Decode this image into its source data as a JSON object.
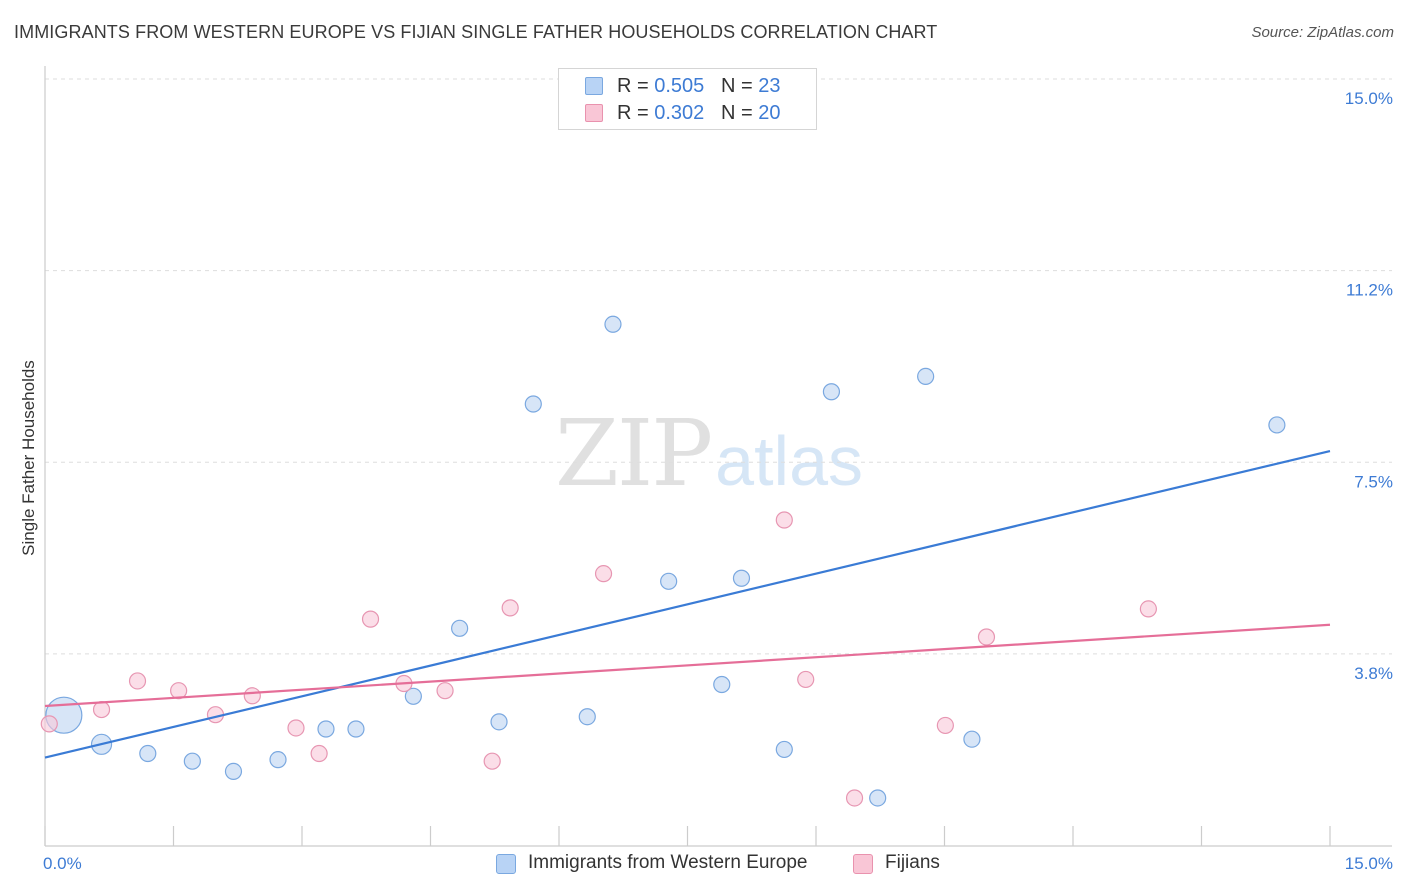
{
  "title": "IMMIGRANTS FROM WESTERN EUROPE VS FIJIAN SINGLE FATHER HOUSEHOLDS CORRELATION CHART",
  "source": "Source: ZipAtlas.com",
  "watermark": {
    "zip": "ZIP",
    "atlas": "atlas"
  },
  "legend_top": {
    "rows": [
      {
        "r_label": "R =",
        "r_value": "0.505",
        "n_label": "N =",
        "n_value": "23",
        "color": "#b8d3f5",
        "border": "#7aa8e0"
      },
      {
        "r_label": "R =",
        "r_value": "0.302",
        "n_label": "N =",
        "n_value": "20",
        "color": "#f9c6d6",
        "border": "#e992ae"
      }
    ]
  },
  "legend_bottom": [
    {
      "label": "Immigrants from Western Europe",
      "color": "#b8d3f5",
      "border": "#7aa8e0"
    },
    {
      "label": "Fijians",
      "color": "#f9c6d6",
      "border": "#e992ae"
    }
  ],
  "colors": {
    "blue_fill": "#bcd4f2",
    "blue_stroke": "#7aa8e0",
    "blue_line": "#3a7bd5",
    "pink_fill": "#f8c8d8",
    "pink_stroke": "#e796b2",
    "pink_line": "#e56e98",
    "tick_label": "#3d7bd4",
    "grid": "#dddddd",
    "axis": "#cccccc"
  },
  "chart_data": {
    "type": "scatter",
    "title": "IMMIGRANTS FROM WESTERN EUROPE VS FIJIAN SINGLE FATHER HOUSEHOLDS CORRELATION CHART",
    "xlabel": "",
    "ylabel": "Single Father Households",
    "xlim": [
      0,
      15
    ],
    "ylim": [
      0,
      15.4
    ],
    "x_tick_labels": [
      {
        "value": 0,
        "label": "0.0%"
      },
      {
        "value": 15,
        "label": "15.0%"
      }
    ],
    "y_tick_labels": [
      {
        "value": 3.75,
        "label": "3.8%"
      },
      {
        "value": 7.5,
        "label": "7.5%"
      },
      {
        "value": 11.25,
        "label": "11.2%"
      },
      {
        "value": 15.0,
        "label": "15.0%"
      }
    ],
    "grid": true,
    "legend_position": "top-center",
    "series": [
      {
        "name": "Immigrants from Western Europe",
        "points": [
          {
            "x": 0.22,
            "y": 2.55,
            "size": 3
          },
          {
            "x": 0.66,
            "y": 1.98,
            "size": 1.6
          },
          {
            "x": 1.2,
            "y": 1.8,
            "size": 1
          },
          {
            "x": 1.72,
            "y": 1.65,
            "size": 1
          },
          {
            "x": 2.2,
            "y": 1.45,
            "size": 1
          },
          {
            "x": 2.72,
            "y": 1.68,
            "size": 1
          },
          {
            "x": 3.28,
            "y": 2.28,
            "size": 1
          },
          {
            "x": 3.63,
            "y": 2.28,
            "size": 1
          },
          {
            "x": 4.3,
            "y": 2.92,
            "size": 1
          },
          {
            "x": 4.84,
            "y": 4.25,
            "size": 1
          },
          {
            "x": 5.3,
            "y": 2.42,
            "size": 1
          },
          {
            "x": 5.7,
            "y": 8.64,
            "size": 1
          },
          {
            "x": 6.33,
            "y": 2.52,
            "size": 1
          },
          {
            "x": 6.63,
            "y": 10.2,
            "size": 1
          },
          {
            "x": 7.28,
            "y": 5.17,
            "size": 1
          },
          {
            "x": 7.9,
            "y": 3.15,
            "size": 1
          },
          {
            "x": 8.13,
            "y": 5.23,
            "size": 1
          },
          {
            "x": 8.63,
            "y": 1.88,
            "size": 1
          },
          {
            "x": 9.18,
            "y": 8.88,
            "size": 1
          },
          {
            "x": 9.72,
            "y": 0.93,
            "size": 1
          },
          {
            "x": 10.28,
            "y": 9.18,
            "size": 1
          },
          {
            "x": 10.82,
            "y": 2.08,
            "size": 1
          },
          {
            "x": 14.38,
            "y": 8.23,
            "size": 1
          }
        ],
        "trend": {
          "x": [
            0,
            15
          ],
          "y": [
            1.72,
            7.72
          ]
        }
      },
      {
        "name": "Fijians",
        "points": [
          {
            "x": 0.05,
            "y": 2.38,
            "size": 1
          },
          {
            "x": 0.66,
            "y": 2.66,
            "size": 1
          },
          {
            "x": 1.08,
            "y": 3.22,
            "size": 1
          },
          {
            "x": 1.56,
            "y": 3.03,
            "size": 1
          },
          {
            "x": 1.99,
            "y": 2.56,
            "size": 1
          },
          {
            "x": 2.42,
            "y": 2.93,
            "size": 1
          },
          {
            "x": 2.93,
            "y": 2.3,
            "size": 1
          },
          {
            "x": 3.2,
            "y": 1.8,
            "size": 1
          },
          {
            "x": 3.8,
            "y": 4.43,
            "size": 1
          },
          {
            "x": 4.19,
            "y": 3.17,
            "size": 1
          },
          {
            "x": 4.67,
            "y": 3.03,
            "size": 1
          },
          {
            "x": 5.22,
            "y": 1.65,
            "size": 1
          },
          {
            "x": 5.43,
            "y": 4.65,
            "size": 1
          },
          {
            "x": 6.52,
            "y": 5.32,
            "size": 1
          },
          {
            "x": 8.63,
            "y": 6.37,
            "size": 1
          },
          {
            "x": 8.88,
            "y": 3.25,
            "size": 1
          },
          {
            "x": 9.45,
            "y": 0.93,
            "size": 1
          },
          {
            "x": 10.51,
            "y": 2.35,
            "size": 1
          },
          {
            "x": 10.99,
            "y": 4.08,
            "size": 1
          },
          {
            "x": 12.88,
            "y": 4.63,
            "size": 1
          }
        ],
        "trend": {
          "x": [
            0,
            15
          ],
          "y": [
            2.73,
            4.32
          ]
        }
      }
    ]
  }
}
